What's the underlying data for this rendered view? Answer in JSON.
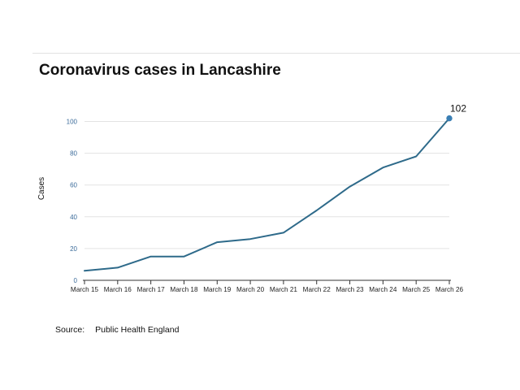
{
  "title": "Coronavirus cases in Lancashire",
  "source": {
    "label": "Source:",
    "text": "Public Health England"
  },
  "colors": {
    "line": "#2e6a8a",
    "tick_label_y": "#3b6b9a",
    "grid": "#e3e3e3",
    "axis": "#333333"
  },
  "chart_data": {
    "type": "line",
    "ylabel": "Cases",
    "xlabel": "",
    "ylim": [
      0,
      110
    ],
    "yticks": [
      0,
      20,
      40,
      60,
      80,
      100
    ],
    "grid": true,
    "categories": [
      "March 15",
      "March 16",
      "March 17",
      "March 18",
      "March 19",
      "March 20",
      "March 21",
      "March 22",
      "March 23",
      "March 24",
      "March 25",
      "March 26"
    ],
    "series": [
      {
        "values": [
          6,
          8,
          15,
          15,
          24,
          26,
          30,
          44,
          59,
          71,
          78,
          102
        ]
      }
    ],
    "annotations": [
      {
        "category": "March 26",
        "text": "102"
      }
    ]
  }
}
